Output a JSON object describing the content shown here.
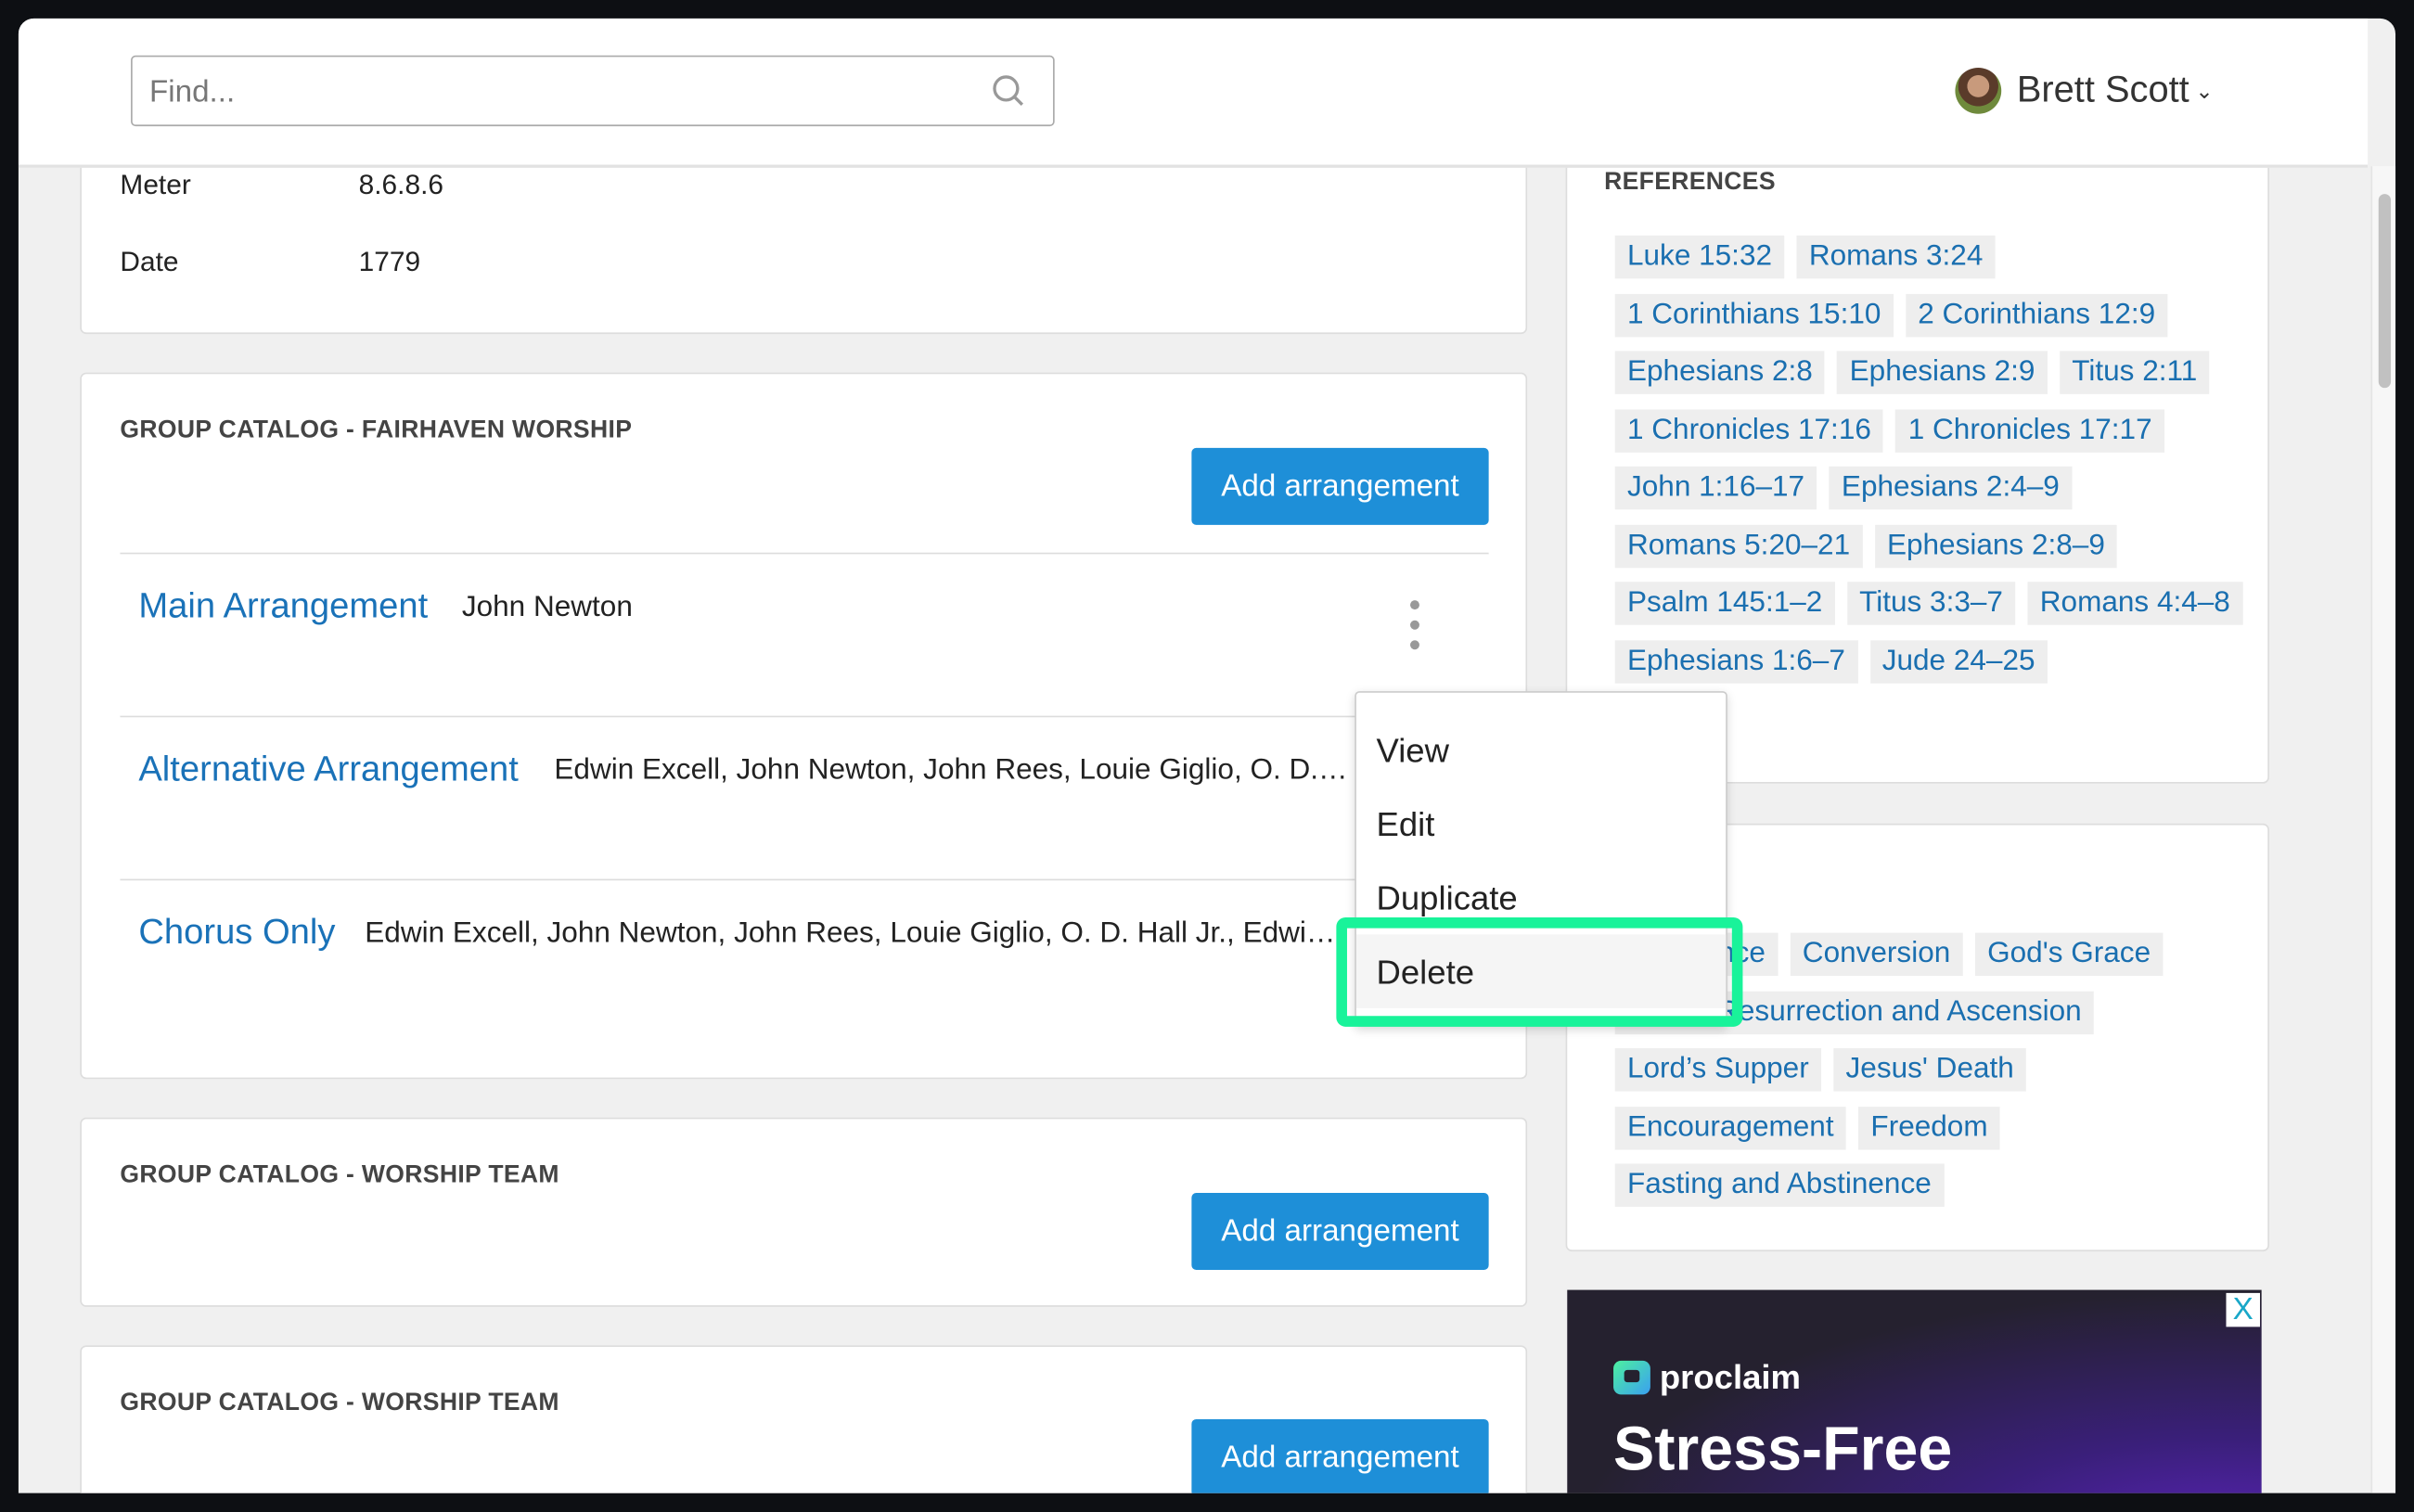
{
  "header": {
    "search_placeholder": "Find...",
    "search_icon": "search-icon",
    "user_name": "Brett Scott",
    "user_chevron": "⌄"
  },
  "details": {
    "meter_label": "Meter",
    "meter_value": "8.6.8.6",
    "date_label": "Date",
    "date_value": "1779"
  },
  "group_catalogs": [
    {
      "title": "GROUP CATALOG - FAIRHAVEN WORSHIP",
      "add_label": "Add arrangement",
      "arrangements": [
        {
          "name": "Main Arrangement",
          "authors": "John Newton"
        },
        {
          "name": "Alternative Arrangement",
          "authors": "Edwin Excell, John Newton, John Rees, Louie Giglio, O. D. Hall Jr., Edwin Excell"
        },
        {
          "name": "Chorus Only",
          "authors": "Edwin Excell, John Newton, John Rees, Louie Giglio, O. D. Hall Jr., Edwin Excell"
        }
      ]
    },
    {
      "title": "GROUP CATALOG - WORSHIP TEAM",
      "add_label": "Add arrangement"
    },
    {
      "title": "GROUP CATALOG - WORSHIP TEAM",
      "add_label": "Add arrangement"
    }
  ],
  "context_menu": {
    "items": [
      "View",
      "Edit",
      "Duplicate",
      "Delete"
    ],
    "highlighted": "Delete",
    "highlight_color": "#19f39a"
  },
  "references": {
    "title": "REFERENCES",
    "tags": [
      "Luke 15:32",
      "Romans 3:24",
      "1 Corinthians 15:10",
      "2 Corinthians 12:9",
      "Ephesians 2:8",
      "Ephesians 2:9",
      "Titus 2:11",
      "1 Chronicles 17:16",
      "1 Chronicles 17:17",
      "John 1:16–17",
      "Ephesians 2:4–9",
      "Romans 5:20–21",
      "Ephesians 2:8–9",
      "Psalm 145:1–2",
      "Titus 3:3–7",
      "Romans 4:4–8",
      "Ephesians 1:6–7",
      "Jude 24–25"
    ]
  },
  "topics": {
    "tags": [
      "Assurance",
      "Conversion",
      "God's Grace",
      "Jesus' Resurrection and Ascension",
      "Lord’s Supper",
      "Jesus' Death",
      "Encouragement",
      "Freedom",
      "Fasting and Abstinence"
    ]
  },
  "ad": {
    "brand": "proclaim",
    "headline": "Stress-Free",
    "close_label": "X"
  },
  "colors": {
    "accent": "#1e8fd8",
    "link": "#1a72b8"
  }
}
